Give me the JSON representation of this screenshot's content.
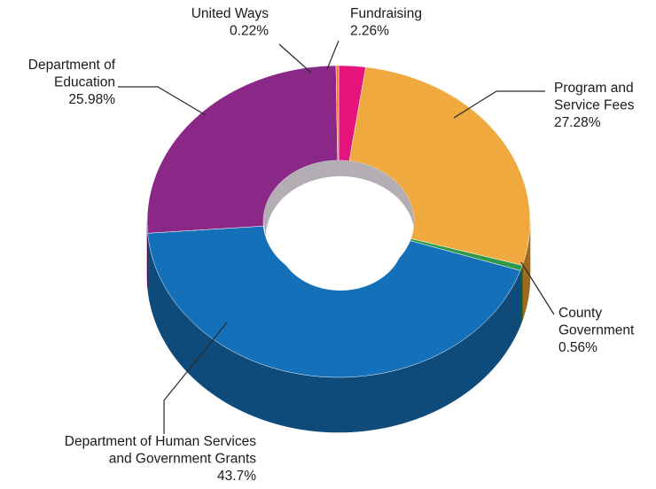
{
  "chart_data": {
    "type": "pie",
    "style": "3d-donut",
    "slices": [
      {
        "name_lines": [
          "Fundraising"
        ],
        "value_label": "2.26%",
        "value": 2.26,
        "color": "#e6137d",
        "side": "#8c0b4b"
      },
      {
        "name_lines": [
          "Program and",
          "Service Fees"
        ],
        "value_label": "27.28%",
        "value": 27.28,
        "color": "#f0a93f",
        "side": "#a06a1c"
      },
      {
        "name_lines": [
          "County",
          "Government"
        ],
        "value_label": "0.56%",
        "value": 0.56,
        "color": "#2e9a48",
        "side": "#1b5e2b"
      },
      {
        "name_lines": [
          "Department of Human Services",
          "and Government Grants"
        ],
        "value_label": "43.7%",
        "value": 43.7,
        "color": "#1470b8",
        "side": "#0e4b7b"
      },
      {
        "name_lines": [
          "Department of",
          "Education"
        ],
        "value_label": "25.98%",
        "value": 25.98,
        "color": "#8a2787",
        "side": "#4f1050"
      },
      {
        "name_lines": [
          "United Ways"
        ],
        "value_label": "0.22%",
        "value": 0.22,
        "color": "#ef7a1f",
        "side": "#9a4a0c"
      }
    ]
  }
}
